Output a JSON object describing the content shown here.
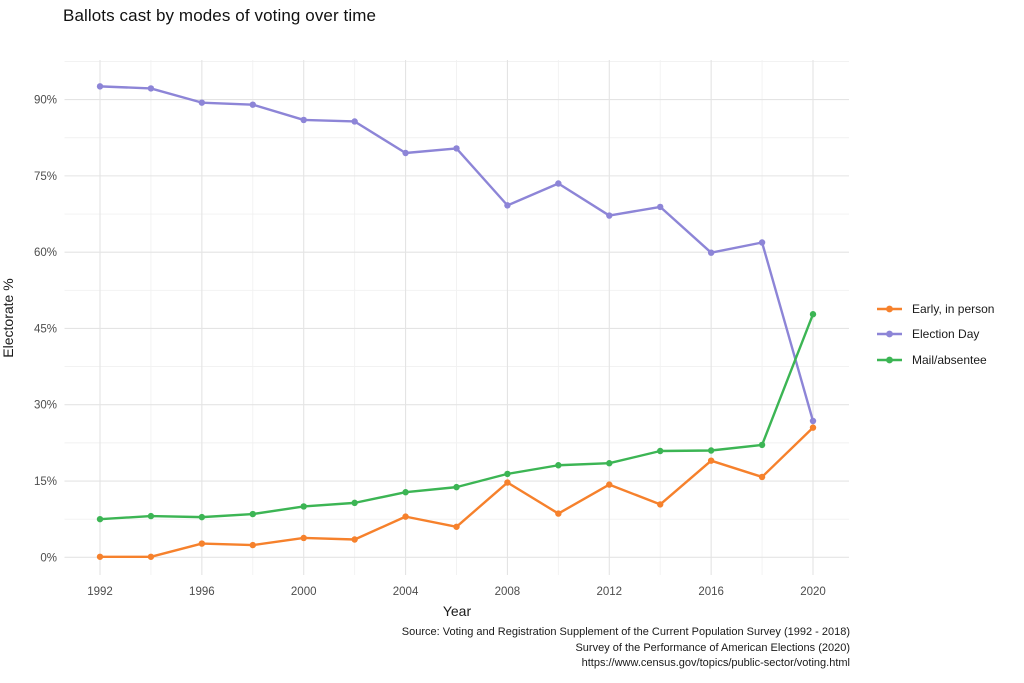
{
  "header": {
    "title": "Ballots cast by modes of voting over time"
  },
  "caption": {
    "lines": [
      "Source: Voting and Registration Supplement of the Current Population Survey (1992 - 2018)",
      "Survey of the Performance of American Elections (2020)",
      "https://www.census.gov/topics/public-sector/voting.html"
    ]
  },
  "colors": {
    "grid_major": "#e4e4e4",
    "grid_minor": "#f1f1f1",
    "tick_text": "#4d4d4d",
    "text": "#1a1a1a",
    "background": "#ffffff"
  },
  "chart_data": {
    "type": "line",
    "title": "Ballots cast by modes of voting over time",
    "xlabel": "Year",
    "ylabel": "Electorate %",
    "x": [
      1992,
      1994,
      1996,
      1998,
      2000,
      2002,
      2004,
      2006,
      2008,
      2010,
      2012,
      2014,
      2016,
      2018,
      2020
    ],
    "series": [
      {
        "name": "Early, in person",
        "color": "#f6812c",
        "values": [
          0.1,
          0.1,
          2.7,
          2.4,
          3.8,
          3.5,
          8.0,
          6.0,
          14.7,
          8.6,
          14.3,
          10.4,
          19.0,
          15.8,
          25.5
        ]
      },
      {
        "name": "Election Day",
        "color": "#8d85d7",
        "values": [
          92.6,
          92.2,
          89.4,
          89.0,
          86.0,
          85.7,
          79.5,
          80.4,
          69.2,
          73.5,
          67.2,
          68.9,
          59.9,
          61.9,
          26.8
        ]
      },
      {
        "name": "Mail/absentee",
        "color": "#3cb554",
        "values": [
          7.5,
          8.1,
          7.9,
          8.5,
          10.0,
          10.7,
          12.8,
          13.8,
          16.4,
          18.1,
          18.5,
          20.9,
          21.0,
          22.1,
          47.8
        ]
      }
    ],
    "x_axis": {
      "ticks": [
        1992,
        1996,
        2000,
        2004,
        2008,
        2012,
        2016,
        2020
      ],
      "minor_ticks": [
        1994,
        1998,
        2002,
        2006,
        2010,
        2014,
        2018
      ]
    },
    "y_axis": {
      "ticks": [
        0,
        15,
        30,
        45,
        60,
        75,
        90
      ],
      "minor_ticks": [
        7.5,
        22.5,
        37.5,
        52.5,
        67.5,
        82.5,
        97.5
      ],
      "tick_suffix": "%"
    },
    "xlim": [
      1992,
      2020
    ],
    "ylim": [
      0,
      97.5
    ],
    "grid": true,
    "legend_position": "right"
  }
}
